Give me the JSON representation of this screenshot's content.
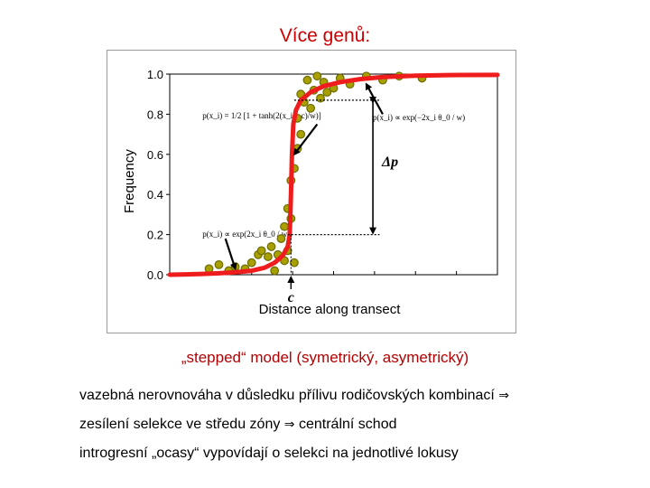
{
  "slide": {
    "title": "Více genů:",
    "subtitle": "„stepped“ model (symetrický, asymetrický)",
    "bullets": [
      {
        "text": "vazebná nerovnováha v důsledku přílivu rodičovských kombinací",
        "arrow": "⇒"
      },
      {
        "text": "zesílení selekce ve středu zóny",
        "arrow": "⇒",
        "tail": "centrální schod"
      },
      {
        "text": "introgresní „ocasy“ vypovídají o selekci na jednotlivé lokusy"
      }
    ]
  },
  "chart_data": {
    "type": "scatter",
    "ylabel": "Frequency",
    "xlabel": "Distance along transect",
    "ylim": [
      0,
      1
    ],
    "yticks": [
      "0.0",
      "0.2",
      "0.4",
      "0.6",
      "0.8",
      "1.0"
    ],
    "ytick_values": [
      0,
      0.2,
      0.4,
      0.6,
      0.8,
      1.0
    ],
    "xlim": [
      0,
      1
    ],
    "grid": false,
    "colors": {
      "curve": "#ee1c1c",
      "points_fill": "#a8a000",
      "points_edge": "#6b6b00"
    },
    "center_label": "c",
    "delta_label": "Δp",
    "curve": [
      [
        0.0,
        0.0
      ],
      [
        0.05,
        0.002
      ],
      [
        0.1,
        0.004
      ],
      [
        0.15,
        0.007
      ],
      [
        0.2,
        0.012
      ],
      [
        0.25,
        0.02
      ],
      [
        0.29,
        0.035
      ],
      [
        0.32,
        0.06
      ],
      [
        0.345,
        0.095
      ],
      [
        0.36,
        0.14
      ],
      [
        0.366,
        0.2
      ],
      [
        0.37,
        0.4
      ],
      [
        0.373,
        0.6
      ],
      [
        0.377,
        0.75
      ],
      [
        0.385,
        0.82
      ],
      [
        0.4,
        0.87
      ],
      [
        0.43,
        0.91
      ],
      [
        0.47,
        0.94
      ],
      [
        0.52,
        0.96
      ],
      [
        0.58,
        0.975
      ],
      [
        0.65,
        0.985
      ],
      [
        0.75,
        0.992
      ],
      [
        0.85,
        0.995
      ],
      [
        1.0,
        0.996
      ]
    ],
    "points": [
      [
        0.12,
        0.03
      ],
      [
        0.15,
        0.05
      ],
      [
        0.18,
        0.02
      ],
      [
        0.2,
        0.04
      ],
      [
        0.23,
        0.03
      ],
      [
        0.25,
        0.06
      ],
      [
        0.27,
        0.1
      ],
      [
        0.28,
        0.12
      ],
      [
        0.3,
        0.09
      ],
      [
        0.31,
        0.14
      ],
      [
        0.32,
        0.02
      ],
      [
        0.33,
        0.1
      ],
      [
        0.34,
        0.18
      ],
      [
        0.35,
        0.07
      ],
      [
        0.35,
        0.24
      ],
      [
        0.36,
        0.12
      ],
      [
        0.36,
        0.33
      ],
      [
        0.37,
        0.28
      ],
      [
        0.37,
        0.47
      ],
      [
        0.38,
        0.53
      ],
      [
        0.38,
        0.06
      ],
      [
        0.39,
        0.63
      ],
      [
        0.39,
        0.78
      ],
      [
        0.4,
        0.7
      ],
      [
        0.4,
        0.9
      ],
      [
        0.41,
        0.86
      ],
      [
        0.42,
        0.97
      ],
      [
        0.43,
        0.83
      ],
      [
        0.44,
        0.92
      ],
      [
        0.45,
        0.99
      ],
      [
        0.46,
        0.88
      ],
      [
        0.47,
        0.96
      ],
      [
        0.48,
        0.91
      ],
      [
        0.5,
        0.93
      ],
      [
        0.52,
        0.98
      ],
      [
        0.55,
        0.95
      ],
      [
        0.6,
        0.99
      ],
      [
        0.65,
        0.97
      ],
      [
        0.7,
        0.99
      ],
      [
        0.77,
        0.98
      ]
    ],
    "annotations": [
      {
        "kind": "formula",
        "text": "p(x_i) = 1/2 [1 + tanh(2(x_i − c)/w)]",
        "at": [
          0.1,
          0.78
        ]
      },
      {
        "kind": "formula",
        "text": "p(x_i) ∝ exp(−2x_i θ_0 / w)",
        "at": [
          0.62,
          0.77
        ]
      },
      {
        "kind": "formula",
        "text": "p(x_i) ∝ exp(2x_i θ_0 / w)",
        "at": [
          0.1,
          0.19
        ]
      }
    ]
  }
}
